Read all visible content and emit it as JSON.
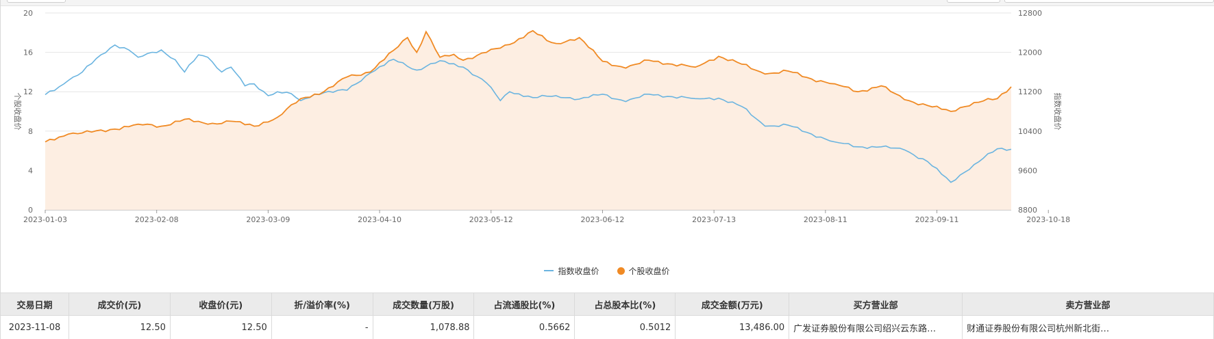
{
  "chart_data": {
    "type": "line",
    "x_tick_labels": [
      "2023-01-03",
      "2023-02-08",
      "2023-03-09",
      "2023-04-10",
      "2023-05-12",
      "2023-06-12",
      "2023-07-13",
      "2023-08-11",
      "2023-09-11",
      "2023-10-18"
    ],
    "left_axis": {
      "label": "个股收盘价",
      "ticks": [
        "0",
        "4",
        "8",
        "12",
        "16",
        "20"
      ],
      "ylim": [
        0,
        20
      ]
    },
    "right_axis": {
      "label": "指数收盘价",
      "ticks": [
        "8800",
        "9600",
        "10400",
        "11200",
        "12000",
        "12800"
      ],
      "ylim": [
        8800,
        12800
      ]
    },
    "grid": true,
    "legend_position": "bottom-center",
    "x_count": 209,
    "series": [
      {
        "name": "指数收盘价",
        "axis": "right",
        "color": "#6ab4e0",
        "style": "line",
        "x": [
          0,
          3,
          5,
          8,
          12,
          15,
          18,
          20,
          25,
          28,
          30,
          33,
          35,
          38,
          40,
          43,
          45,
          48,
          50,
          53,
          55,
          58,
          60,
          65,
          70,
          75,
          80,
          85,
          90,
          95,
          98,
          100,
          105,
          110,
          115,
          120,
          125,
          130,
          135,
          140,
          145,
          150,
          155,
          160,
          165,
          170,
          175,
          180,
          185,
          190,
          195,
          200,
          205,
          208
        ],
        "values": [
          11140,
          11300,
          11430,
          11600,
          11950,
          12150,
          12050,
          11900,
          12050,
          11850,
          11600,
          11950,
          11900,
          11600,
          11700,
          11320,
          11360,
          11120,
          11200,
          11160,
          11020,
          11150,
          11180,
          11230,
          11580,
          11860,
          11640,
          11830,
          11700,
          11380,
          11020,
          11200,
          11080,
          11120,
          11050,
          11150,
          11000,
          11150,
          11100,
          11060,
          11070,
          10900,
          10500,
          10520,
          10340,
          10180,
          10080,
          10080,
          10020,
          9780,
          9360,
          9720,
          10040,
          10030
        ]
      },
      {
        "name": "个股收盘价",
        "axis": "left",
        "color": "#f08a24",
        "fill": "#fdeee2",
        "style": "line+area",
        "x": [
          0,
          5,
          10,
          15,
          20,
          25,
          30,
          35,
          40,
          45,
          50,
          55,
          60,
          65,
          70,
          75,
          78,
          80,
          82,
          85,
          88,
          90,
          95,
          100,
          105,
          108,
          110,
          115,
          120,
          125,
          130,
          135,
          140,
          145,
          150,
          155,
          160,
          165,
          170,
          175,
          180,
          185,
          190,
          195,
          200,
          205,
          208
        ],
        "values": [
          6.9,
          7.7,
          7.9,
          8.2,
          8.7,
          8.5,
          9.2,
          8.7,
          9.0,
          8.5,
          9.4,
          11.3,
          12.0,
          13.5,
          14.0,
          16.2,
          17.5,
          16.0,
          18.1,
          15.5,
          15.8,
          15.2,
          16.0,
          16.8,
          18.2,
          17.2,
          16.9,
          17.5,
          15.1,
          14.4,
          15.2,
          14.8,
          14.5,
          15.6,
          14.8,
          13.8,
          14.1,
          13.3,
          12.8,
          12.0,
          12.6,
          11.2,
          10.6,
          10.0,
          10.9,
          11.3,
          12.5
        ]
      }
    ]
  },
  "legend": {
    "index_label": "指数收盘价",
    "stock_label": "个股收盘价"
  },
  "table": {
    "headers": [
      "交易日期",
      "成交价(元)",
      "收盘价(元)",
      "折/溢价率(%)",
      "成交数量(万股)",
      "占流通股比(%)",
      "占总股本比(%)",
      "成交金额(万元)",
      "买方营业部",
      "卖方营业部"
    ],
    "rows": [
      [
        "2023-11-08",
        "12.50",
        "12.50",
        "-",
        "1,078.88",
        "0.5662",
        "0.5012",
        "13,486.00",
        "广发证券股份有限公司绍兴云东路…",
        "财通证券股份有限公司杭州新北街…"
      ]
    ]
  }
}
